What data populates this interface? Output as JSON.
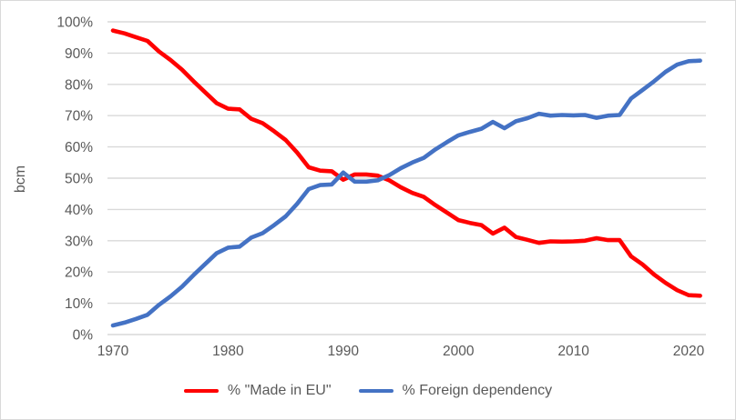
{
  "chart": {
    "ylabel": "bcm",
    "colors": {
      "made_in_eu": "#ff0000",
      "foreign_dependency": "#4472c4",
      "gridline": "#d9d9d9",
      "axis_text": "#595959",
      "border": "#d9d9d9",
      "background": "#ffffff"
    }
  },
  "chart_data": {
    "type": "line",
    "title": "",
    "xlabel": "",
    "ylabel": "bcm",
    "grid": "horizontal",
    "legend_position": "bottom",
    "ylim": [
      0,
      100
    ],
    "yticks": [
      {
        "value": 100,
        "label": "100%"
      },
      {
        "value": 90,
        "label": "90%"
      },
      {
        "value": 80,
        "label": "80%"
      },
      {
        "value": 70,
        "label": "70%"
      },
      {
        "value": 60,
        "label": "60%"
      },
      {
        "value": 50,
        "label": "50%"
      },
      {
        "value": 40,
        "label": "40%"
      },
      {
        "value": 30,
        "label": "30%"
      },
      {
        "value": 20,
        "label": "20%"
      },
      {
        "value": 10,
        "label": "10%"
      },
      {
        "value": 0,
        "label": "0%"
      }
    ],
    "xticks": [
      {
        "value": 1970,
        "label": "1970"
      },
      {
        "value": 1980,
        "label": "1980"
      },
      {
        "value": 1990,
        "label": "1990"
      },
      {
        "value": 2000,
        "label": "2000"
      },
      {
        "value": 2010,
        "label": "2010"
      },
      {
        "value": 2020,
        "label": "2020"
      }
    ],
    "x": [
      1970,
      1971,
      1972,
      1973,
      1974,
      1975,
      1976,
      1977,
      1978,
      1979,
      1980,
      1981,
      1982,
      1983,
      1984,
      1985,
      1986,
      1987,
      1988,
      1989,
      1990,
      1991,
      1992,
      1993,
      1994,
      1995,
      1996,
      1997,
      1998,
      1999,
      2000,
      2001,
      2002,
      2003,
      2004,
      2005,
      2006,
      2007,
      2008,
      2009,
      2010,
      2011,
      2012,
      2013,
      2014,
      2015,
      2016,
      2017,
      2018,
      2019,
      2020,
      2021
    ],
    "series": [
      {
        "name": "% \"Made in EU\"",
        "key": "made_in_eu",
        "color": "#ff0000",
        "values": [
          97.2,
          96.3,
          95.1,
          93.9,
          90.5,
          87.8,
          84.7,
          81.0,
          77.5,
          74.0,
          72.2,
          72.0,
          69.0,
          67.6,
          65.0,
          62.2,
          58.2,
          53.5,
          52.4,
          52.2,
          49.5,
          51.2,
          51.2,
          50.8,
          49.3,
          47.1,
          45.3,
          44.0,
          41.4,
          39.0,
          36.6,
          35.7,
          35.0,
          32.3,
          34.2,
          31.2,
          30.3,
          29.3,
          29.8,
          29.7,
          29.8,
          30.0,
          30.8,
          30.2,
          30.2,
          25.0,
          22.4,
          19.2,
          16.5,
          14.2,
          12.6,
          12.4
        ]
      },
      {
        "name": "% Foreign dependency",
        "key": "foreign_dependency",
        "color": "#4472c4",
        "values": [
          2.9,
          3.8,
          5.0,
          6.3,
          9.5,
          12.2,
          15.3,
          19.0,
          22.5,
          26.0,
          27.8,
          28.1,
          31.0,
          32.4,
          35.0,
          37.8,
          41.8,
          46.5,
          47.8,
          48.0,
          51.8,
          48.9,
          48.9,
          49.3,
          51.0,
          53.2,
          55.0,
          56.5,
          59.2,
          61.5,
          63.7,
          64.8,
          65.8,
          68.0,
          66.0,
          68.2,
          69.2,
          70.6,
          70.0,
          70.2,
          70.1,
          70.2,
          69.3,
          70.0,
          70.2,
          75.5,
          78.2,
          81.0,
          84.0,
          86.3,
          87.4,
          87.6
        ]
      }
    ]
  }
}
